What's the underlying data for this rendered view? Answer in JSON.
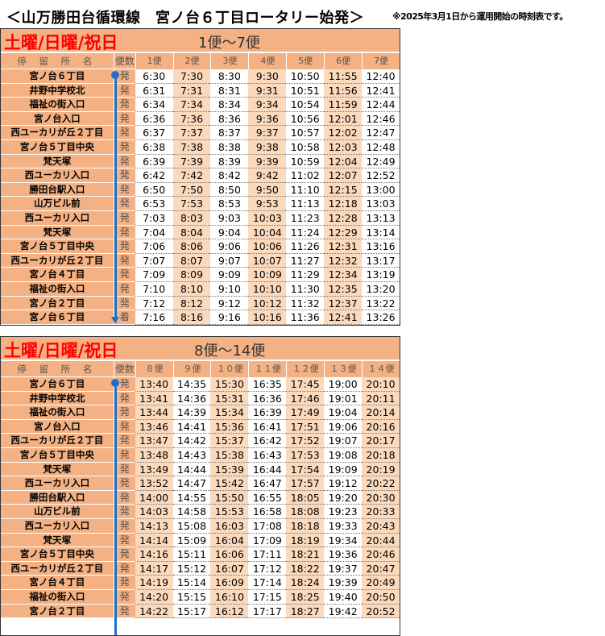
{
  "title": "＜山万勝田台循環線　宮ノ台６丁目ロータリー始発＞",
  "note": "※2025年3月1日から運用開始の時刻表です。",
  "colors": {
    "header": "#f4b183",
    "shade": "#fbd9bd",
    "day": "#ff0000",
    "route_line": "#1f6fc5"
  },
  "header": {
    "stop": "停 留 所 名",
    "bin": "便数"
  },
  "tables": [
    {
      "day": "土曜/日曜/祝日",
      "range": "1便～7便",
      "shade_first": false,
      "cols": [
        "1便",
        "2便",
        "3便",
        "4便",
        "5便",
        "6便",
        "7便"
      ],
      "rows": [
        {
          "stop": "宮ノ台６丁目",
          "type": "発",
          "times": [
            "6:30",
            "7:30",
            "8:30",
            "9:30",
            "10:50",
            "11:55",
            "12:40"
          ]
        },
        {
          "stop": "井野中学校北",
          "type": "発",
          "times": [
            "6:31",
            "7:31",
            "8:31",
            "9:31",
            "10:51",
            "11:56",
            "12:41"
          ]
        },
        {
          "stop": "福祉の街入口",
          "type": "発",
          "times": [
            "6:34",
            "7:34",
            "8:34",
            "9:34",
            "10:54",
            "11:59",
            "12:44"
          ]
        },
        {
          "stop": "宮ノ台入口",
          "type": "発",
          "times": [
            "6:36",
            "7:36",
            "8:36",
            "9:36",
            "10:56",
            "12:01",
            "12:46"
          ]
        },
        {
          "stop": "西ユーカリが丘２丁目",
          "type": "発",
          "times": [
            "6:37",
            "7:37",
            "8:37",
            "9:37",
            "10:57",
            "12:02",
            "12:47"
          ]
        },
        {
          "stop": "宮ノ台５丁目中央",
          "type": "発",
          "times": [
            "6:38",
            "7:38",
            "8:38",
            "9:38",
            "10:58",
            "12:03",
            "12:48"
          ]
        },
        {
          "stop": "梵天塚",
          "type": "発",
          "times": [
            "6:39",
            "7:39",
            "8:39",
            "9:39",
            "10:59",
            "12:04",
            "12:49"
          ]
        },
        {
          "stop": "西ユーカリ入口",
          "type": "発",
          "times": [
            "6:42",
            "7:42",
            "8:42",
            "9:42",
            "11:02",
            "12:07",
            "12:52"
          ]
        },
        {
          "stop": "勝田台駅入口",
          "type": "発",
          "times": [
            "6:50",
            "7:50",
            "8:50",
            "9:50",
            "11:10",
            "12:15",
            "13:00"
          ]
        },
        {
          "stop": "山万ビル前",
          "type": "発",
          "times": [
            "6:53",
            "7:53",
            "8:53",
            "9:53",
            "11:13",
            "12:18",
            "13:03"
          ]
        },
        {
          "stop": "西ユーカリ入口",
          "type": "発",
          "times": [
            "7:03",
            "8:03",
            "9:03",
            "10:03",
            "11:23",
            "12:28",
            "13:13"
          ]
        },
        {
          "stop": "梵天塚",
          "type": "発",
          "times": [
            "7:04",
            "8:04",
            "9:04",
            "10:04",
            "11:24",
            "12:29",
            "13:14"
          ]
        },
        {
          "stop": "宮ノ台５丁目中央",
          "type": "発",
          "times": [
            "7:06",
            "8:06",
            "9:06",
            "10:06",
            "11:26",
            "12:31",
            "13:16"
          ]
        },
        {
          "stop": "西ユーカリが丘２丁目",
          "type": "発",
          "times": [
            "7:07",
            "8:07",
            "9:07",
            "10:07",
            "11:27",
            "12:32",
            "13:17"
          ]
        },
        {
          "stop": "宮ノ台４丁目",
          "type": "発",
          "times": [
            "7:09",
            "8:09",
            "9:09",
            "10:09",
            "11:29",
            "12:34",
            "13:19"
          ]
        },
        {
          "stop": "福祉の街入口",
          "type": "発",
          "times": [
            "7:10",
            "8:10",
            "9:10",
            "10:10",
            "11:30",
            "12:35",
            "13:20"
          ]
        },
        {
          "stop": "宮ノ台２丁目",
          "type": "発",
          "times": [
            "7:12",
            "8:12",
            "9:12",
            "10:12",
            "11:32",
            "12:37",
            "13:22"
          ]
        },
        {
          "stop": "宮ノ台６丁目",
          "type": "着",
          "times": [
            "7:16",
            "8:16",
            "9:16",
            "10:16",
            "11:36",
            "12:41",
            "13:26"
          ]
        }
      ]
    },
    {
      "day": "土曜/日曜/祝日",
      "range": "8便～14便",
      "shade_first": true,
      "cols": [
        "８便",
        "９便",
        "１０便",
        "１１便",
        "１２便",
        "１３便",
        "１４便"
      ],
      "rows": [
        {
          "stop": "宮ノ台６丁目",
          "type": "発",
          "times": [
            "13:40",
            "14:35",
            "15:30",
            "16:35",
            "17:45",
            "19:00",
            "20:10"
          ]
        },
        {
          "stop": "井野中学校北",
          "type": "発",
          "times": [
            "13:41",
            "14:36",
            "15:31",
            "16:36",
            "17:46",
            "19:01",
            "20:11"
          ]
        },
        {
          "stop": "福祉の街入口",
          "type": "発",
          "times": [
            "13:44",
            "14:39",
            "15:34",
            "16:39",
            "17:49",
            "19:04",
            "20:14"
          ]
        },
        {
          "stop": "宮ノ台入口",
          "type": "発",
          "times": [
            "13:46",
            "14:41",
            "15:36",
            "16:41",
            "17:51",
            "19:06",
            "20:16"
          ]
        },
        {
          "stop": "西ユーカリが丘２丁目",
          "type": "発",
          "times": [
            "13:47",
            "14:42",
            "15:37",
            "16:42",
            "17:52",
            "19:07",
            "20:17"
          ]
        },
        {
          "stop": "宮ノ台５丁目中央",
          "type": "発",
          "times": [
            "13:48",
            "14:43",
            "15:38",
            "16:43",
            "17:53",
            "19:08",
            "20:18"
          ]
        },
        {
          "stop": "梵天塚",
          "type": "発",
          "times": [
            "13:49",
            "14:44",
            "15:39",
            "16:44",
            "17:54",
            "19:09",
            "20:19"
          ]
        },
        {
          "stop": "西ユーカリ入口",
          "type": "発",
          "times": [
            "13:52",
            "14:47",
            "15:42",
            "16:47",
            "17:57",
            "19:12",
            "20:22"
          ]
        },
        {
          "stop": "勝田台駅入口",
          "type": "発",
          "times": [
            "14:00",
            "14:55",
            "15:50",
            "16:55",
            "18:05",
            "19:20",
            "20:30"
          ]
        },
        {
          "stop": "山万ビル前",
          "type": "発",
          "times": [
            "14:03",
            "14:58",
            "15:53",
            "16:58",
            "18:08",
            "19:23",
            "20:33"
          ]
        },
        {
          "stop": "西ユーカリ入口",
          "type": "発",
          "times": [
            "14:13",
            "15:08",
            "16:03",
            "17:08",
            "18:18",
            "19:33",
            "20:43"
          ]
        },
        {
          "stop": "梵天塚",
          "type": "発",
          "times": [
            "14:14",
            "15:09",
            "16:04",
            "17:09",
            "18:19",
            "19:34",
            "20:44"
          ]
        },
        {
          "stop": "宮ノ台５丁目中央",
          "type": "発",
          "times": [
            "14:16",
            "15:11",
            "16:06",
            "17:11",
            "18:21",
            "19:36",
            "20:46"
          ]
        },
        {
          "stop": "西ユーカリが丘２丁目",
          "type": "発",
          "times": [
            "14:17",
            "15:12",
            "16:07",
            "17:12",
            "18:22",
            "19:37",
            "20:47"
          ]
        },
        {
          "stop": "宮ノ台４丁目",
          "type": "発",
          "times": [
            "14:19",
            "15:14",
            "16:09",
            "17:14",
            "18:24",
            "19:39",
            "20:49"
          ]
        },
        {
          "stop": "福祉の街入口",
          "type": "発",
          "times": [
            "14:20",
            "15:15",
            "16:10",
            "17:15",
            "18:25",
            "19:40",
            "20:50"
          ]
        },
        {
          "stop": "宮ノ台２丁目",
          "type": "発",
          "times": [
            "14:22",
            "15:17",
            "16:12",
            "17:17",
            "18:27",
            "19:42",
            "20:52"
          ]
        }
      ]
    }
  ]
}
